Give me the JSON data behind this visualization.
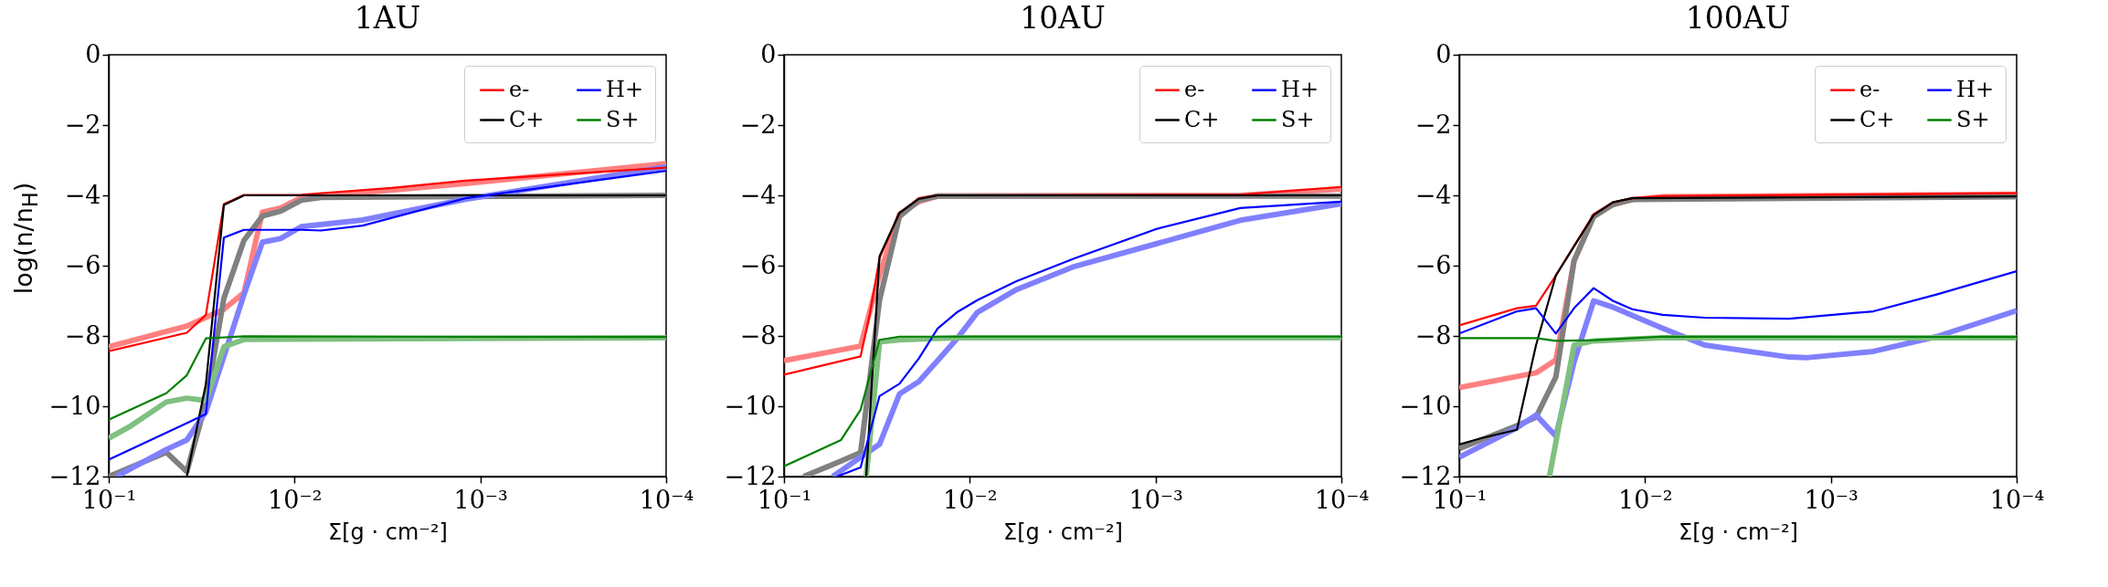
{
  "chart_data": [
    {
      "type": "line",
      "title": "1AU",
      "xlabel": "Σ[g · cm⁻²]",
      "ylabel": "log(n/n$_{H}$)",
      "log": "x",
      "xlim": [
        0.1,
        0.0001
      ],
      "xticks": [
        {
          "value": 0.1,
          "label": "10⁻¹"
        },
        {
          "value": 0.01,
          "label": "10⁻²"
        },
        {
          "value": 0.001,
          "label": "10⁻³"
        },
        {
          "value": 0.0001,
          "label": "10⁻⁴"
        }
      ],
      "ylim": [
        -12,
        0
      ],
      "yticks": [
        -12,
        -10,
        -8,
        -6,
        -4,
        -2,
        0
      ],
      "grid": false,
      "legend": "top right",
      "series": [
        {
          "name": "e-",
          "color": "#ff0000",
          "x": [
            0.1,
            0.038,
            0.03,
            0.024,
            0.0187,
            0.0092,
            0.003,
            0.0012,
            0.0001
          ],
          "values": [
            -8.43,
            -7.91,
            -7.4,
            -4.25,
            -3.99,
            -3.98,
            -3.79,
            -3.58,
            -3.21
          ]
        },
        {
          "name": "C+",
          "color": "#000000",
          "x": [
            0.038,
            0.03,
            0.024,
            0.0187,
            0.0001
          ],
          "values": [
            -12,
            -9.37,
            -4.27,
            -4.0,
            -4.0
          ]
        },
        {
          "name": "H+",
          "color": "#0000ff",
          "x": [
            0.1,
            0.038,
            0.03,
            0.024,
            0.0187,
            0.0092,
            0.0072,
            0.0043,
            0.0012,
            0.0001
          ],
          "values": [
            -11.52,
            -10.48,
            -10.22,
            -5.2,
            -4.98,
            -4.98,
            -5.0,
            -4.86,
            -4.08,
            -3.3
          ]
        },
        {
          "name": "S+",
          "color": "#008000",
          "x": [
            0.1,
            0.049,
            0.038,
            0.03,
            0.0187,
            0.0001
          ],
          "values": [
            -10.38,
            -9.63,
            -9.12,
            -8.07,
            -8.01,
            -8.03
          ]
        },
        {
          "color": "#ff8080",
          "x": [
            0.1,
            0.038,
            0.024,
            0.0187,
            0.0149,
            0.0119,
            0.0092,
            0.003,
            0.0012,
            0.0001
          ],
          "values": [
            -8.31,
            -7.72,
            -7.24,
            -6.77,
            -4.48,
            -4.36,
            -4.06,
            -3.85,
            -3.66,
            -3.1
          ]
        },
        {
          "color": "#808080",
          "x": [
            0.1,
            0.049,
            0.038,
            0.03,
            0.024,
            0.0187,
            0.0149,
            0.0119,
            0.0092,
            0.0072,
            0.0001
          ],
          "values": [
            -12,
            -11.31,
            -11.86,
            -9.9,
            -6.93,
            -5.28,
            -4.59,
            -4.45,
            -4.14,
            -4.06,
            -4.0
          ]
        },
        {
          "color": "#8080ff",
          "x": [
            0.091,
            0.049,
            0.038,
            0.03,
            0.0187,
            0.0149,
            0.0119,
            0.0092,
            0.0043,
            0.0012,
            0.0001
          ],
          "values": [
            -12,
            -11.23,
            -10.96,
            -10.16,
            -6.82,
            -5.33,
            -5.23,
            -4.89,
            -4.7,
            -4.11,
            -3.19
          ]
        },
        {
          "color": "#80c080",
          "x": [
            0.1,
            0.0777,
            0.049,
            0.038,
            0.03,
            0.024,
            0.0187,
            0.0001
          ],
          "values": [
            -10.91,
            -10.59,
            -9.88,
            -9.77,
            -9.84,
            -8.31,
            -8.1,
            -8.05
          ]
        }
      ]
    },
    {
      "type": "line",
      "title": "10AU",
      "xlabel": "Σ[g · cm⁻²]",
      "log": "x",
      "xlim": [
        0.1,
        0.0001
      ],
      "xticks": [
        {
          "value": 0.1,
          "label": "10⁻¹"
        },
        {
          "value": 0.01,
          "label": "10⁻²"
        },
        {
          "value": 0.001,
          "label": "10⁻³"
        },
        {
          "value": 0.0001,
          "label": "10⁻⁴"
        }
      ],
      "ylim": [
        -12,
        0
      ],
      "yticks": [
        -12,
        -10,
        -8,
        -6,
        -4,
        -2,
        0
      ],
      "grid": false,
      "legend": "top right",
      "series": [
        {
          "name": "e-",
          "color": "#ff0000",
          "x": [
            0.1,
            0.0387,
            0.0344,
            0.0306,
            0.0239,
            0.0188,
            0.0149,
            0.00035,
            0.0001
          ],
          "values": [
            -9.1,
            -8.58,
            -7.33,
            -5.79,
            -4.5,
            -4.08,
            -4.0,
            -3.98,
            -3.76
          ]
        },
        {
          "name": "C+",
          "color": "#000000",
          "x": [
            0.0361,
            0.0306,
            0.0239,
            0.0188,
            0.0149,
            0.0001
          ],
          "values": [
            -12,
            -5.73,
            -4.5,
            -4.1,
            -4.0,
            -4.0
          ]
        },
        {
          "name": "H+",
          "color": "#0000ff",
          "x": [
            0.0519,
            0.0387,
            0.0306,
            0.0239,
            0.0188,
            0.0149,
            0.0116,
            0.0091,
            0.0056,
            0.00273,
            0.00098,
            0.00035,
            0.0001
          ],
          "values": [
            -12,
            -11.74,
            -9.71,
            -9.36,
            -8.64,
            -7.79,
            -7.31,
            -6.98,
            -6.44,
            -5.79,
            -4.95,
            -4.36,
            -4.18
          ]
        },
        {
          "name": "S+",
          "color": "#008000",
          "x": [
            0.1,
            0.0493,
            0.0387,
            0.0306,
            0.0239,
            0.0001
          ],
          "values": [
            -11.71,
            -10.96,
            -10.1,
            -8.11,
            -8.02,
            -8.02
          ]
        },
        {
          "color": "#ff8080",
          "x": [
            0.1,
            0.0387,
            0.0306,
            0.0239,
            0.0188,
            0.0149,
            0.00035,
            0.0001
          ],
          "values": [
            -8.7,
            -8.29,
            -6.26,
            -4.54,
            -4.18,
            -4.02,
            -4.0,
            -3.82
          ]
        },
        {
          "color": "#808080",
          "x": [
            0.0785,
            0.0493,
            0.0387,
            0.0306,
            0.0239,
            0.0188,
            0.0149,
            0.0001
          ],
          "values": [
            -12,
            -11.56,
            -11.32,
            -6.98,
            -4.6,
            -4.14,
            -4.02,
            -4.02
          ]
        },
        {
          "color": "#8080ff",
          "x": [
            0.0547,
            0.0306,
            0.0239,
            0.0188,
            0.0149,
            0.0116,
            0.0091,
            0.0056,
            0.00273,
            0.00098,
            0.00035,
            0.0001
          ],
          "values": [
            -12,
            -11.08,
            -9.65,
            -9.3,
            -8.7,
            -8.05,
            -7.33,
            -6.68,
            -6.02,
            -5.37,
            -4.71,
            -4.24
          ]
        },
        {
          "color": "#80c080",
          "x": [
            0.0361,
            0.0306,
            0.0239,
            0.0116,
            0.0001
          ],
          "values": [
            -12,
            -8.17,
            -8.11,
            -8.05,
            -8.05
          ]
        }
      ]
    },
    {
      "type": "line",
      "title": "100AU",
      "xlabel": "Σ[g · cm⁻²]",
      "log": "x",
      "xlim": [
        0.1,
        0.0001
      ],
      "xticks": [
        {
          "value": 0.1,
          "label": "10⁻¹"
        },
        {
          "value": 0.01,
          "label": "10⁻²"
        },
        {
          "value": 0.001,
          "label": "10⁻³"
        },
        {
          "value": 0.0001,
          "label": "10⁻⁴"
        }
      ],
      "ylim": [
        -12,
        0
      ],
      "yticks": [
        -12,
        -10,
        -8,
        -6,
        -4,
        -2,
        0
      ],
      "grid": false,
      "legend": "top right",
      "series": [
        {
          "name": "e-",
          "color": "#ff0000",
          "x": [
            0.1,
            0.0489,
            0.0386,
            0.0302,
            0.0241,
            0.0189,
            0.0149,
            0.0117,
            0.00806,
            0.0001
          ],
          "values": [
            -7.7,
            -7.21,
            -7.14,
            -6.28,
            -5.44,
            -4.54,
            -4.2,
            -4.08,
            -4.02,
            -3.94
          ]
        },
        {
          "name": "C+",
          "color": "#000000",
          "x": [
            0.1,
            0.0762,
            0.0489,
            0.0386,
            0.0302,
            0.0189,
            0.0149,
            0.0117,
            0.0001
          ],
          "values": [
            -11.09,
            -10.91,
            -10.67,
            -8.26,
            -6.28,
            -4.56,
            -4.2,
            -4.08,
            -4.03
          ]
        },
        {
          "name": "H+",
          "color": "#0000ff",
          "x": [
            0.1,
            0.0489,
            0.0386,
            0.0302,
            0.0241,
            0.0189,
            0.0149,
            0.0117,
            0.00806,
            0.00478,
            0.00168,
            0.00059,
            0.00027,
            0.0001
          ],
          "values": [
            -7.93,
            -7.3,
            -7.21,
            -7.93,
            -7.21,
            -6.64,
            -7.0,
            -7.24,
            -7.4,
            -7.48,
            -7.51,
            -7.3,
            -6.82,
            -6.16
          ]
        },
        {
          "name": "S+",
          "color": "#008000",
          "x": [
            0.1,
            0.0386,
            0.0302,
            0.0189,
            0.00806,
            0.0001
          ],
          "values": [
            -8.06,
            -8.06,
            -8.14,
            -8.12,
            -8.02,
            -8.03
          ]
        },
        {
          "color": "#ff8080",
          "x": [
            0.1,
            0.0386,
            0.0302,
            0.0241,
            0.0189,
            0.0149,
            0.0117,
            0.00806,
            0.0001
          ],
          "values": [
            -9.47,
            -9.05,
            -8.68,
            -5.86,
            -4.6,
            -4.26,
            -4.12,
            -4.04,
            -3.97
          ]
        },
        {
          "color": "#808080",
          "x": [
            0.1,
            0.0489,
            0.0386,
            0.0302,
            0.0241,
            0.0189,
            0.0149,
            0.0117,
            0.0001
          ],
          "values": [
            -11.21,
            -10.55,
            -10.31,
            -9.17,
            -5.86,
            -4.6,
            -4.26,
            -4.12,
            -4.04
          ]
        },
        {
          "color": "#8080ff",
          "x": [
            0.1,
            0.0489,
            0.0386,
            0.0302,
            0.0241,
            0.0189,
            0.0149,
            0.00806,
            0.00478,
            0.00168,
            0.00136,
            0.00059,
            0.00027,
            0.0001
          ],
          "values": [
            -11.45,
            -10.61,
            -10.25,
            -10.85,
            -8.74,
            -7.0,
            -7.18,
            -7.78,
            -8.26,
            -8.6,
            -8.62,
            -8.44,
            -8.02,
            -7.28
          ]
        },
        {
          "color": "#80c080",
          "x": [
            0.0327,
            0.0241,
            0.0189,
            0.00806,
            0.0001
          ],
          "values": [
            -12,
            -8.26,
            -8.14,
            -8.05,
            -8.05
          ]
        }
      ]
    }
  ]
}
